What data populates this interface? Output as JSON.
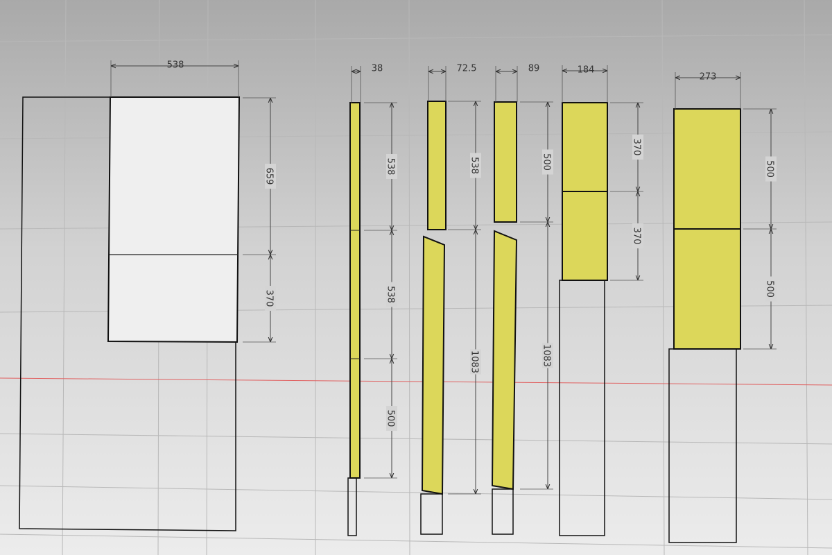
{
  "parts": [
    {
      "width": 538,
      "heights": [
        659,
        370
      ]
    },
    {
      "width": 38,
      "heights": [
        538,
        538,
        500
      ]
    },
    {
      "width": 72.5,
      "heights": [
        538,
        1083
      ]
    },
    {
      "width": 89,
      "heights": [
        500,
        1083
      ]
    },
    {
      "width": 184,
      "heights": [
        370,
        370
      ]
    },
    {
      "width": 273,
      "heights": [
        500,
        500
      ]
    }
  ]
}
